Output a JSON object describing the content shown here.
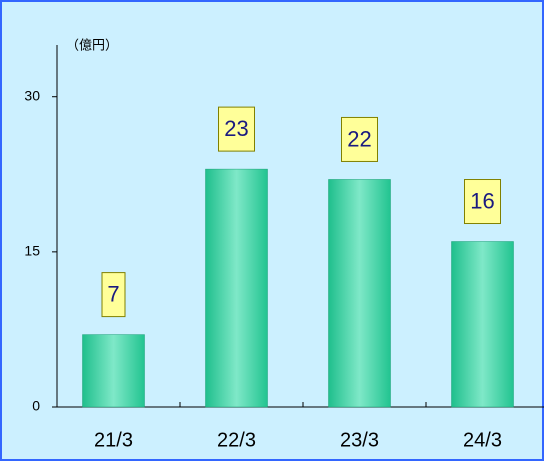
{
  "chart_data": {
    "type": "bar",
    "y_axis_label": "（億円）",
    "categories": [
      "21/3",
      "22/3",
      "23/3",
      "24/3"
    ],
    "values": [
      7,
      23,
      22,
      16
    ],
    "color": "#2ecf9c",
    "ylim": [
      0,
      35
    ],
    "yticks": [
      0,
      15,
      30
    ],
    "grid": false
  }
}
